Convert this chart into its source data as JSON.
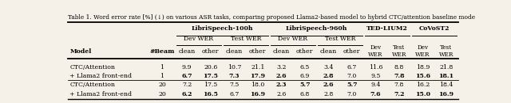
{
  "title": "Table 1. Word error rate [%] (↓) on various ASR tasks, comparing proposed Llama2-based model to hybrid CTC/attention baseline mode",
  "rows": [
    {
      "model": "CTC/Attention",
      "beam": "1",
      "vals": [
        "9.9",
        "20.6",
        "10.7",
        "21.1",
        "3.2",
        "6.5",
        "3.4",
        "6.7",
        "11.6",
        "8.8",
        "18.9",
        "21.8"
      ],
      "bold": [
        false,
        false,
        false,
        false,
        false,
        false,
        false,
        false,
        false,
        false,
        false,
        false
      ]
    },
    {
      "model": "+ Llama2 front-end",
      "beam": "1",
      "vals": [
        "6.7",
        "17.5",
        "7.3",
        "17.9",
        "2.6",
        "6.9",
        "2.8",
        "7.0",
        "9.5",
        "7.8",
        "15.6",
        "18.1"
      ],
      "bold": [
        true,
        true,
        true,
        true,
        true,
        false,
        true,
        false,
        false,
        true,
        true,
        true
      ]
    },
    {
      "model": "CTC/Attention",
      "beam": "20",
      "vals": [
        "7.2",
        "17.5",
        "7.5",
        "18.0",
        "2.3",
        "5.7",
        "2.6",
        "5.7",
        "9.4",
        "7.8",
        "16.2",
        "18.4"
      ],
      "bold": [
        false,
        false,
        false,
        false,
        true,
        true,
        true,
        true,
        false,
        false,
        false,
        false
      ]
    },
    {
      "model": "+ Llama2 front-end",
      "beam": "20",
      "vals": [
        "6.2",
        "16.5",
        "6.7",
        "16.9",
        "2.6",
        "6.8",
        "2.8",
        "7.0",
        "7.6",
        "7.2",
        "15.0",
        "16.9"
      ],
      "bold": [
        true,
        true,
        false,
        true,
        false,
        false,
        false,
        false,
        true,
        true,
        true,
        true
      ]
    }
  ],
  "bg_color": "#f5f0e8"
}
